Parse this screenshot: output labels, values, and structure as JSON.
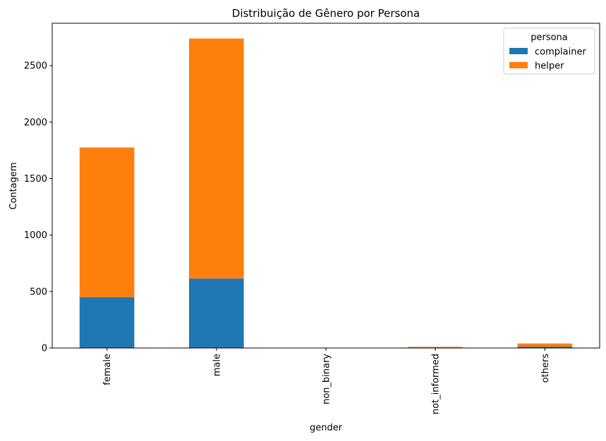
{
  "chart_data": {
    "type": "bar",
    "stacked": true,
    "title": "Distribuição de Gênero por Persona",
    "xlabel": "gender",
    "ylabel": "Contagem",
    "categories": [
      "female",
      "male",
      "non_binary",
      "not_informed",
      "others"
    ],
    "series": [
      {
        "name": "complainer",
        "color": "#1f77b4",
        "values": [
          450,
          615,
          0,
          2,
          12
        ]
      },
      {
        "name": "helper",
        "color": "#ff7f0e",
        "values": [
          1325,
          2125,
          1,
          8,
          28
        ]
      }
    ],
    "ylim": [
      0,
      2875
    ],
    "yticks": [
      0,
      500,
      1000,
      1500,
      2000,
      2500
    ],
    "grid": false,
    "legend": {
      "title": "persona",
      "position": "top-right"
    }
  }
}
